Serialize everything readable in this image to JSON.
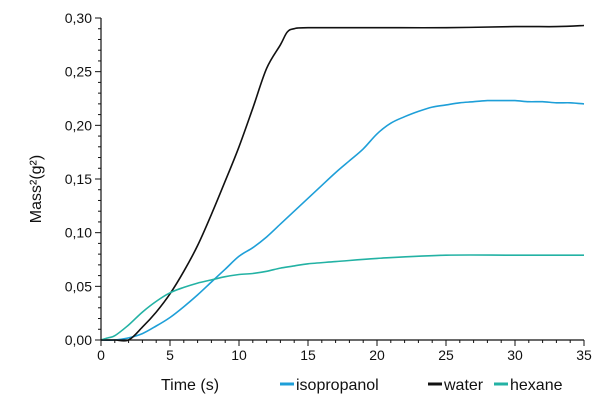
{
  "chart_data": {
    "type": "line",
    "title": "",
    "xlabel": "Time (s)",
    "ylabel": "Mass²(g²)",
    "xlim": [
      0,
      35
    ],
    "ylim": [
      0,
      0.3
    ],
    "grid": false,
    "legend_position": "bottom-right",
    "x_ticks": [
      "0",
      "5",
      "10",
      "15",
      "20",
      "25",
      "30",
      "35"
    ],
    "x_tick_values": [
      0,
      5,
      10,
      15,
      20,
      25,
      30,
      35
    ],
    "y_ticks": [
      "0,00",
      "0,05",
      "0,10",
      "0,15",
      "0,20",
      "0,25",
      "0,30"
    ],
    "y_tick_values": [
      0,
      0.05,
      0.1,
      0.15,
      0.2,
      0.25,
      0.3
    ],
    "series": [
      {
        "name": "isopropanol",
        "color": "#1e9fd8",
        "x": [
          0,
          1,
          2,
          3,
          4,
          5,
          6,
          7,
          8,
          9,
          10,
          11,
          12,
          13,
          14,
          15,
          16,
          17,
          18,
          19,
          20,
          21,
          22,
          23,
          24,
          25,
          26,
          27,
          28,
          29,
          30,
          31,
          32,
          33,
          34,
          35
        ],
        "y": [
          0.0,
          0.0,
          0.002,
          0.006,
          0.013,
          0.021,
          0.031,
          0.042,
          0.054,
          0.066,
          0.078,
          0.086,
          0.096,
          0.108,
          0.12,
          0.132,
          0.144,
          0.156,
          0.167,
          0.178,
          0.192,
          0.202,
          0.208,
          0.213,
          0.217,
          0.219,
          0.221,
          0.222,
          0.223,
          0.223,
          0.223,
          0.222,
          0.222,
          0.221,
          0.221,
          0.22
        ]
      },
      {
        "name": "water",
        "color": "#111111",
        "x": [
          0,
          1,
          2,
          3,
          4,
          5,
          6,
          7,
          8,
          9,
          10,
          11,
          12,
          13,
          13.5,
          14,
          15,
          20,
          25,
          30,
          33,
          35
        ],
        "y": [
          0.0,
          0.0,
          0.0,
          0.012,
          0.026,
          0.043,
          0.064,
          0.088,
          0.117,
          0.148,
          0.18,
          0.216,
          0.253,
          0.275,
          0.287,
          0.29,
          0.291,
          0.291,
          0.291,
          0.292,
          0.292,
          0.293
        ]
      },
      {
        "name": "hexane",
        "color": "#23b2a4",
        "x": [
          0,
          0.5,
          1,
          2,
          3,
          4,
          5,
          6,
          7,
          8,
          9,
          10,
          11,
          12,
          13,
          14,
          15,
          17,
          20,
          25,
          30,
          35
        ],
        "y": [
          0.0,
          0.002,
          0.004,
          0.014,
          0.026,
          0.036,
          0.044,
          0.049,
          0.053,
          0.056,
          0.059,
          0.061,
          0.062,
          0.064,
          0.067,
          0.069,
          0.071,
          0.073,
          0.076,
          0.079,
          0.079,
          0.079
        ]
      }
    ]
  }
}
